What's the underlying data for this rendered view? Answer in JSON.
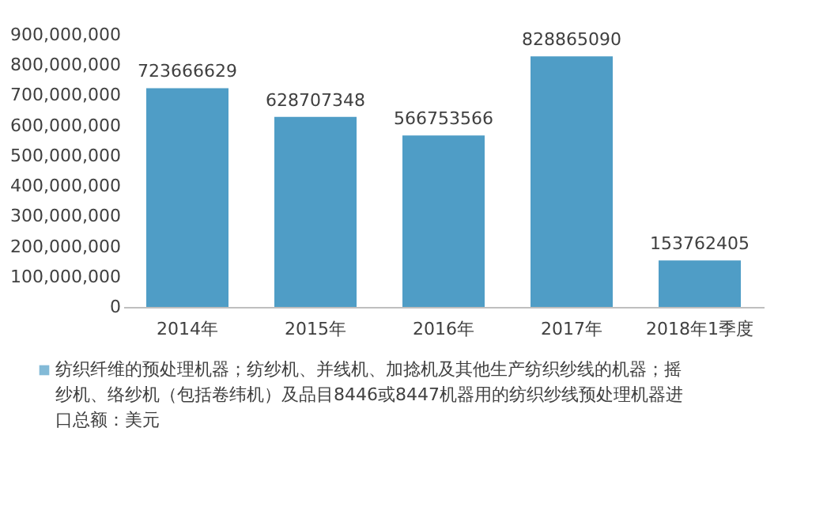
{
  "chart_data": {
    "type": "bar",
    "categories": [
      "2014年",
      "2015年",
      "2016年",
      "2017年",
      "2018年1季度"
    ],
    "series": [
      {
        "name": "纺织纤维的预处理机器；纺纱机、并线机、加捻机及其他生产纺织纱线的机器；摇纱机、络纱机（包括卷纬机）及品目8446或8447机器用的纺织纱线预处理机器进口总额：美元",
        "color": "#4f9dc6",
        "values": [
          723666629,
          628707348,
          566753566,
          828865090,
          153762405
        ]
      }
    ],
    "ylim": [
      0,
      900000000
    ],
    "yticks": [
      0,
      {
        "value": 100000000,
        "label": "100,000,000"
      },
      {
        "value": 200000000,
        "label": "200,000,000"
      },
      {
        "value": 300000000,
        "label": "300,000,000"
      },
      {
        "value": 400000000,
        "label": "400,000,000"
      },
      {
        "value": 500000000,
        "label": "500,000,000"
      },
      {
        "value": 600000000,
        "label": "600,000,000"
      },
      {
        "value": 700000000,
        "label": "700,000,000"
      },
      {
        "value": 800000000,
        "label": "800,000,000"
      },
      {
        "value": 900000000,
        "label": "900,000,000"
      }
    ],
    "data_labels": true,
    "grid": false,
    "legend": "bottom"
  }
}
